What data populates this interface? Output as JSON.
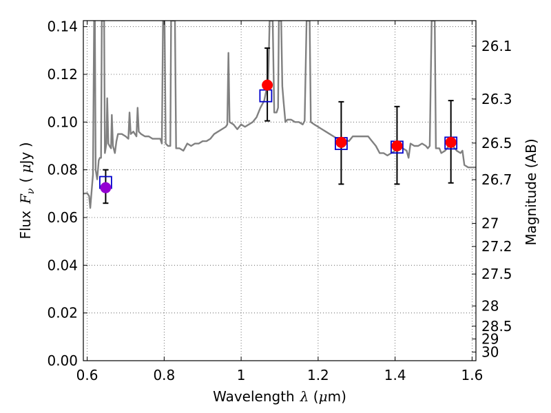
{
  "chart_data": {
    "type": "scatter",
    "xlabel": "Wavelength",
    "xlabel_symbol": "λ",
    "xlabel_unit_open": " (",
    "xlabel_unit_mu": "μ",
    "xlabel_unit_rest": "m)",
    "ylabel": "Flux",
    "ylabel_symbol": "F",
    "ylabel_symbol_sub": "ν",
    "ylabel_unit_open": "( ",
    "ylabel_unit_mu": "μ",
    "ylabel_unit_rest": "Jy )",
    "y2label": "Magnitude (AB)",
    "xlim": [
      0.59,
      1.61
    ],
    "ylim": [
      0.0,
      0.1425
    ],
    "grid": true,
    "x_ticks": [
      0.6,
      0.8,
      1.0,
      1.2,
      1.4,
      1.6
    ],
    "x_tick_labels": [
      "0.6",
      "0.8",
      "1",
      "1.2",
      "1.4",
      "1.6"
    ],
    "y_ticks": [
      0.0,
      0.02,
      0.04,
      0.06,
      0.08,
      0.1,
      0.12,
      0.14
    ],
    "y_tick_labels": [
      "0.00",
      "0.02",
      "0.04",
      "0.06",
      "0.08",
      "0.10",
      "0.12",
      "0.14"
    ],
    "y2_ticks": [
      26.1,
      26.3,
      26.5,
      26.7,
      27,
      27.2,
      27.5,
      28,
      28.5,
      29,
      30
    ],
    "y2_tick_labels": [
      "26.1",
      "26.3",
      "26.5",
      "26.7",
      "27",
      "27.2",
      "27.5",
      "28",
      "28.5",
      "29",
      "30"
    ],
    "series": [
      {
        "kind": "model_spectrum",
        "color": "#808080",
        "points": [
          [
            0.59,
            0.07
          ],
          [
            0.6,
            0.0702
          ],
          [
            0.605,
            0.069
          ],
          [
            0.608,
            0.064
          ],
          [
            0.612,
            0.072
          ],
          [
            0.615,
            0.078
          ],
          [
            0.618,
            0.1425
          ],
          [
            0.62,
            0.1425
          ],
          [
            0.622,
            0.08
          ],
          [
            0.626,
            0.076
          ],
          [
            0.63,
            0.084
          ],
          [
            0.633,
            0.085
          ],
          [
            0.636,
            0.085
          ],
          [
            0.638,
            0.1425
          ],
          [
            0.644,
            0.1425
          ],
          [
            0.646,
            0.087
          ],
          [
            0.65,
            0.091
          ],
          [
            0.652,
            0.11
          ],
          [
            0.655,
            0.091
          ],
          [
            0.658,
            0.09
          ],
          [
            0.662,
            0.089
          ],
          [
            0.664,
            0.103
          ],
          [
            0.667,
            0.09
          ],
          [
            0.672,
            0.087
          ],
          [
            0.676,
            0.092
          ],
          [
            0.68,
            0.095
          ],
          [
            0.69,
            0.095
          ],
          [
            0.7,
            0.094
          ],
          [
            0.707,
            0.093
          ],
          [
            0.71,
            0.104
          ],
          [
            0.713,
            0.095
          ],
          [
            0.72,
            0.096
          ],
          [
            0.728,
            0.094
          ],
          [
            0.731,
            0.106
          ],
          [
            0.734,
            0.096
          ],
          [
            0.74,
            0.095
          ],
          [
            0.75,
            0.094
          ],
          [
            0.76,
            0.094
          ],
          [
            0.77,
            0.093
          ],
          [
            0.78,
            0.093
          ],
          [
            0.79,
            0.093
          ],
          [
            0.794,
            0.091
          ],
          [
            0.797,
            0.1425
          ],
          [
            0.801,
            0.1425
          ],
          [
            0.804,
            0.091
          ],
          [
            0.81,
            0.09
          ],
          [
            0.816,
            0.09
          ],
          [
            0.818,
            0.1425
          ],
          [
            0.828,
            0.1425
          ],
          [
            0.831,
            0.089
          ],
          [
            0.84,
            0.089
          ],
          [
            0.85,
            0.088
          ],
          [
            0.86,
            0.091
          ],
          [
            0.87,
            0.09
          ],
          [
            0.88,
            0.091
          ],
          [
            0.89,
            0.091
          ],
          [
            0.9,
            0.092
          ],
          [
            0.91,
            0.092
          ],
          [
            0.92,
            0.093
          ],
          [
            0.93,
            0.095
          ],
          [
            0.94,
            0.096
          ],
          [
            0.95,
            0.097
          ],
          [
            0.96,
            0.098
          ],
          [
            0.964,
            0.099
          ],
          [
            0.967,
            0.129
          ],
          [
            0.97,
            0.1
          ],
          [
            0.98,
            0.099
          ],
          [
            0.99,
            0.097
          ],
          [
            1.0,
            0.099
          ],
          [
            1.01,
            0.098
          ],
          [
            1.02,
            0.099
          ],
          [
            1.03,
            0.1
          ],
          [
            1.04,
            0.102
          ],
          [
            1.05,
            0.106
          ],
          [
            1.06,
            0.109
          ],
          [
            1.065,
            0.113
          ],
          [
            1.07,
            0.115
          ],
          [
            1.074,
            0.1425
          ],
          [
            1.082,
            0.1425
          ],
          [
            1.086,
            0.104
          ],
          [
            1.092,
            0.104
          ],
          [
            1.096,
            0.106
          ],
          [
            1.098,
            0.1425
          ],
          [
            1.104,
            0.1425
          ],
          [
            1.107,
            0.115
          ],
          [
            1.11,
            0.109
          ],
          [
            1.115,
            0.1
          ],
          [
            1.12,
            0.101
          ],
          [
            1.13,
            0.101
          ],
          [
            1.14,
            0.1
          ],
          [
            1.15,
            0.1
          ],
          [
            1.16,
            0.099
          ],
          [
            1.165,
            0.1005
          ],
          [
            1.17,
            0.1425
          ],
          [
            1.178,
            0.1425
          ],
          [
            1.181,
            0.1
          ],
          [
            1.19,
            0.099
          ],
          [
            1.2,
            0.098
          ],
          [
            1.21,
            0.097
          ],
          [
            1.22,
            0.096
          ],
          [
            1.23,
            0.095
          ],
          [
            1.24,
            0.094
          ],
          [
            1.25,
            0.093
          ],
          [
            1.26,
            0.0925
          ],
          [
            1.27,
            0.0925
          ],
          [
            1.28,
            0.092
          ],
          [
            1.29,
            0.094
          ],
          [
            1.3,
            0.094
          ],
          [
            1.31,
            0.094
          ],
          [
            1.32,
            0.094
          ],
          [
            1.33,
            0.094
          ],
          [
            1.34,
            0.092
          ],
          [
            1.35,
            0.09
          ],
          [
            1.36,
            0.087
          ],
          [
            1.37,
            0.087
          ],
          [
            1.38,
            0.086
          ],
          [
            1.39,
            0.087
          ],
          [
            1.4,
            0.088
          ],
          [
            1.41,
            0.089
          ],
          [
            1.42,
            0.089
          ],
          [
            1.43,
            0.088
          ],
          [
            1.435,
            0.085
          ],
          [
            1.44,
            0.091
          ],
          [
            1.45,
            0.09
          ],
          [
            1.46,
            0.09
          ],
          [
            1.47,
            0.091
          ],
          [
            1.48,
            0.09
          ],
          [
            1.485,
            0.089
          ],
          [
            1.49,
            0.09
          ],
          [
            1.495,
            0.1425
          ],
          [
            1.503,
            0.1425
          ],
          [
            1.506,
            0.089
          ],
          [
            1.515,
            0.089
          ],
          [
            1.52,
            0.087
          ],
          [
            1.53,
            0.088
          ],
          [
            1.54,
            0.09
          ],
          [
            1.55,
            0.09
          ],
          [
            1.56,
            0.088
          ],
          [
            1.57,
            0.087
          ],
          [
            1.575,
            0.088
          ],
          [
            1.58,
            0.082
          ],
          [
            1.59,
            0.081
          ],
          [
            1.6,
            0.081
          ],
          [
            1.61,
            0.081
          ]
        ]
      },
      {
        "kind": "observed_with_error",
        "marker": "circle",
        "color": "#ff0000",
        "points": [
          {
            "x": 0.648,
            "y": 0.0725,
            "err_low": 0.066,
            "err_high": 0.08,
            "color": "#9400d3"
          },
          {
            "x": 1.068,
            "y": 0.1155,
            "err_low": 0.1005,
            "err_high": 0.131
          },
          {
            "x": 1.26,
            "y": 0.0915,
            "err_low": 0.074,
            "err_high": 0.1085
          },
          {
            "x": 1.405,
            "y": 0.09,
            "err_low": 0.074,
            "err_high": 0.1065
          },
          {
            "x": 1.545,
            "y": 0.0915,
            "err_low": 0.0745,
            "err_high": 0.109
          }
        ]
      },
      {
        "kind": "model_photometry",
        "marker": "open-square",
        "color": "#0000cc",
        "points": [
          {
            "x": 0.648,
            "y": 0.0747
          },
          {
            "x": 1.064,
            "y": 0.111
          },
          {
            "x": 1.26,
            "y": 0.091
          },
          {
            "x": 1.405,
            "y": 0.0895
          },
          {
            "x": 1.545,
            "y": 0.0912
          }
        ]
      }
    ]
  }
}
